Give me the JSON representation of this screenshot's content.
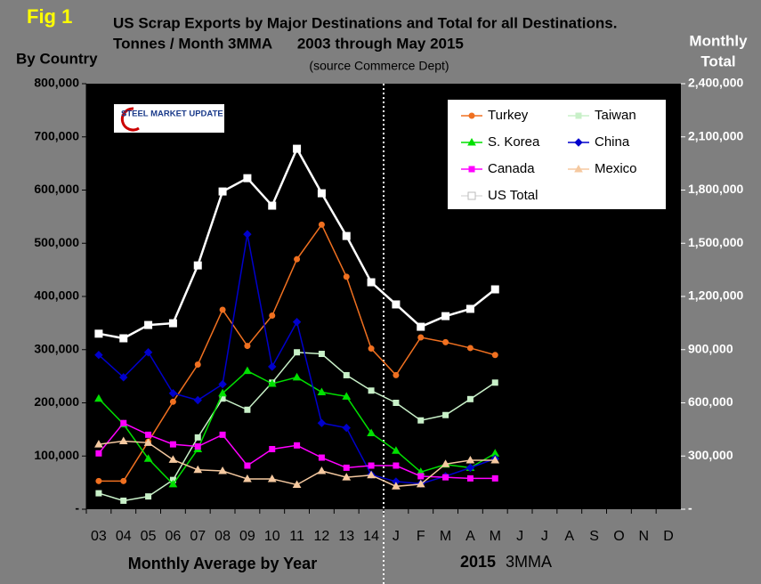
{
  "chart_data": {
    "type": "line",
    "figure_label": "Fig 1",
    "title": "US Scrap Exports by Major Destinations and Total for all Destinations.",
    "subtitle": "Tonnes / Month 3MMA      2003 through May 2015",
    "source": "(source Commerce Dept)",
    "ylabel": "By Country",
    "y2label": [
      "Monthly",
      "Total"
    ],
    "xlabel": "Monthly Average by Year",
    "xlabel2": [
      "2015",
      "3MMA"
    ],
    "logo": "STEEL MARKET UPDATE",
    "categories": [
      "03",
      "04",
      "05",
      "06",
      "07",
      "08",
      "09",
      "10",
      "11",
      "12",
      "13",
      "14",
      "J",
      "F",
      "M",
      "A",
      "M",
      "J",
      "J",
      "A",
      "S",
      "O",
      "N",
      "D"
    ],
    "ylim": [
      0,
      800000
    ],
    "yticks": [
      {
        "value": 0,
        "label": "-"
      },
      {
        "value": 100000,
        "label": "100,000"
      },
      {
        "value": 200000,
        "label": "200,000"
      },
      {
        "value": 300000,
        "label": "300,000"
      },
      {
        "value": 400000,
        "label": "400,000"
      },
      {
        "value": 500000,
        "label": "500,000"
      },
      {
        "value": 600000,
        "label": "600,000"
      },
      {
        "value": 700000,
        "label": "700,000"
      },
      {
        "value": 800000,
        "label": "800,000"
      }
    ],
    "y2lim": [
      0,
      2400000
    ],
    "y2ticks": [
      {
        "value": 0,
        "label": "-"
      },
      {
        "value": 300000,
        "label": "300,000"
      },
      {
        "value": 600000,
        "label": "600,000"
      },
      {
        "value": 900000,
        "label": "900,000"
      },
      {
        "value": 1200000,
        "label": "1,200,000"
      },
      {
        "value": 1500000,
        "label": "1,500,000"
      },
      {
        "value": 1800000,
        "label": "1,800,000"
      },
      {
        "value": 2100000,
        "label": "2,100,000"
      },
      {
        "value": 2400000,
        "label": "2,400,000"
      }
    ],
    "legend": "upper right",
    "series": [
      {
        "name": "Turkey",
        "color": "#f07020",
        "marker": "circle",
        "values": [
          53000,
          53000,
          127000,
          202000,
          272000,
          375000,
          307000,
          364000,
          470000,
          535000,
          437000,
          302000,
          252000,
          323000,
          314000,
          303000,
          290000,
          null,
          null,
          null,
          null,
          null,
          null,
          null
        ]
      },
      {
        "name": "Taiwan",
        "color": "#c8f0c8",
        "marker": "square",
        "values": [
          30000,
          16000,
          24000,
          55000,
          135000,
          208000,
          187000,
          238000,
          295000,
          292000,
          252000,
          223000,
          200000,
          167000,
          177000,
          207000,
          238000,
          null,
          null,
          null,
          null,
          null,
          null,
          null
        ]
      },
      {
        "name": "S. Korea",
        "color": "#00e000",
        "marker": "triangle",
        "values": [
          208000,
          160000,
          95000,
          47000,
          113000,
          218000,
          260000,
          236000,
          248000,
          220000,
          212000,
          143000,
          110000,
          70000,
          84000,
          78000,
          105000,
          null,
          null,
          null,
          null,
          null,
          null,
          null
        ]
      },
      {
        "name": "China",
        "color": "#0000cc",
        "marker": "diamond",
        "values": [
          290000,
          248000,
          295000,
          218000,
          205000,
          235000,
          517000,
          268000,
          352000,
          162000,
          153000,
          65000,
          52000,
          48000,
          62000,
          78000,
          95000,
          null,
          null,
          null,
          null,
          null,
          null,
          null
        ]
      },
      {
        "name": "Canada",
        "color": "#ff00ff",
        "marker": "square",
        "values": [
          105000,
          162000,
          140000,
          122000,
          118000,
          140000,
          82000,
          113000,
          120000,
          97000,
          78000,
          82000,
          82000,
          62000,
          60000,
          58000,
          58000,
          null,
          null,
          null,
          null,
          null,
          null,
          null
        ]
      },
      {
        "name": "Mexico",
        "color": "#f5c9a0",
        "marker": "triangle",
        "values": [
          122000,
          128000,
          125000,
          93000,
          74000,
          72000,
          57000,
          57000,
          46000,
          72000,
          60000,
          64000,
          43000,
          47000,
          85000,
          92000,
          92000,
          null,
          null,
          null,
          null,
          null,
          null,
          null
        ]
      },
      {
        "name": "US Total",
        "color": "#ffffff",
        "marker": "bigsquare",
        "axis": "y2",
        "values": [
          990000,
          964000,
          1039000,
          1049000,
          1375000,
          1792000,
          1867000,
          1712000,
          2033000,
          1782000,
          1541000,
          1280000,
          1155000,
          1029000,
          1089000,
          1130000,
          1240000,
          null,
          null,
          null,
          null,
          null,
          null,
          null
        ]
      }
    ]
  }
}
